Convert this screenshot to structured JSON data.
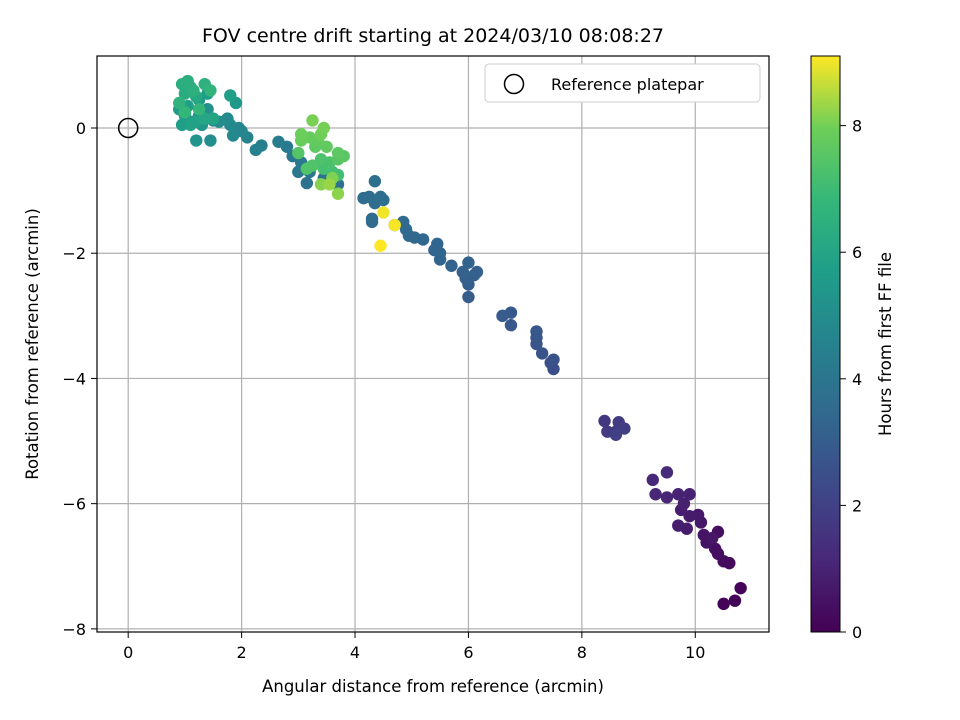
{
  "chart_data": {
    "type": "scatter",
    "title": "FOV centre drift starting at 2024/03/10 08:08:27",
    "xlabel": "Angular distance from reference (arcmin)",
    "ylabel": "Rotation from reference (arcmin)",
    "xlim": [
      -0.55,
      11.3
    ],
    "ylim": [
      -8.05,
      1.15
    ],
    "xticks": [
      0,
      2,
      4,
      6,
      8,
      10
    ],
    "xtick_labels": [
      "0",
      "2",
      "4",
      "6",
      "8",
      "10"
    ],
    "yticks": [
      0,
      -2,
      -4,
      -6,
      -8
    ],
    "ytick_labels": [
      "0",
      "−2",
      "−4",
      "−6",
      "−8"
    ],
    "grid": true,
    "legend": {
      "placement": "upper-right",
      "entries": [
        "Reference platepar"
      ]
    },
    "reference_point": {
      "x": 0,
      "y": 0,
      "label": "Reference platepar"
    },
    "colorbar": {
      "label": "Hours from first FF file",
      "range": [
        0,
        9.1
      ],
      "ticks": [
        0,
        2,
        4,
        6,
        8
      ],
      "tick_labels": [
        "0",
        "2",
        "4",
        "6",
        "8"
      ],
      "colormap": "viridis"
    },
    "points": [
      {
        "x": 10.5,
        "y": -7.6,
        "c": 0.05
      },
      {
        "x": 10.7,
        "y": -7.55,
        "c": 0.1
      },
      {
        "x": 10.8,
        "y": -7.35,
        "c": 0.15
      },
      {
        "x": 10.6,
        "y": -6.95,
        "c": 0.25
      },
      {
        "x": 10.5,
        "y": -6.92,
        "c": 0.3
      },
      {
        "x": 10.4,
        "y": -6.8,
        "c": 0.35
      },
      {
        "x": 10.35,
        "y": -6.72,
        "c": 0.4
      },
      {
        "x": 10.4,
        "y": -6.45,
        "c": 0.45
      },
      {
        "x": 10.2,
        "y": -6.62,
        "c": 0.5
      },
      {
        "x": 10.15,
        "y": -6.5,
        "c": 0.55
      },
      {
        "x": 10.3,
        "y": -6.55,
        "c": 0.6
      },
      {
        "x": 10.1,
        "y": -6.3,
        "c": 0.65
      },
      {
        "x": 10.05,
        "y": -6.18,
        "c": 0.7
      },
      {
        "x": 9.9,
        "y": -6.2,
        "c": 0.75
      },
      {
        "x": 9.85,
        "y": -6.4,
        "c": 0.8
      },
      {
        "x": 9.7,
        "y": -6.35,
        "c": 0.82
      },
      {
        "x": 9.75,
        "y": -6.1,
        "c": 0.85
      },
      {
        "x": 9.8,
        "y": -6.0,
        "c": 0.9
      },
      {
        "x": 9.9,
        "y": -5.85,
        "c": 0.95
      },
      {
        "x": 9.7,
        "y": -5.85,
        "c": 1.0
      },
      {
        "x": 9.5,
        "y": -5.9,
        "c": 1.05
      },
      {
        "x": 9.3,
        "y": -5.85,
        "c": 1.1
      },
      {
        "x": 9.25,
        "y": -5.62,
        "c": 1.15
      },
      {
        "x": 9.5,
        "y": -5.5,
        "c": 1.2
      },
      {
        "x": 8.4,
        "y": -4.68,
        "c": 1.7
      },
      {
        "x": 8.45,
        "y": -4.85,
        "c": 1.75
      },
      {
        "x": 8.6,
        "y": -4.85,
        "c": 1.8
      },
      {
        "x": 8.65,
        "y": -4.7,
        "c": 1.85
      },
      {
        "x": 8.75,
        "y": -4.8,
        "c": 1.9
      },
      {
        "x": 8.6,
        "y": -4.9,
        "c": 1.95
      },
      {
        "x": 7.5,
        "y": -3.85,
        "c": 2.5
      },
      {
        "x": 7.45,
        "y": -3.75,
        "c": 2.55
      },
      {
        "x": 7.5,
        "y": -3.7,
        "c": 2.6
      },
      {
        "x": 7.3,
        "y": -3.6,
        "c": 2.65
      },
      {
        "x": 7.2,
        "y": -3.45,
        "c": 2.7
      },
      {
        "x": 7.2,
        "y": -3.35,
        "c": 2.75
      },
      {
        "x": 7.2,
        "y": -3.25,
        "c": 2.8
      },
      {
        "x": 6.75,
        "y": -3.15,
        "c": 2.85
      },
      {
        "x": 6.75,
        "y": -2.95,
        "c": 2.9
      },
      {
        "x": 6.6,
        "y": -3.0,
        "c": 2.95
      },
      {
        "x": 6.0,
        "y": -2.7,
        "c": 3.0
      },
      {
        "x": 6.0,
        "y": -2.5,
        "c": 3.05
      },
      {
        "x": 5.95,
        "y": -2.4,
        "c": 3.1
      },
      {
        "x": 6.1,
        "y": -2.35,
        "c": 3.12
      },
      {
        "x": 6.15,
        "y": -2.3,
        "c": 3.15
      },
      {
        "x": 5.9,
        "y": -2.3,
        "c": 3.18
      },
      {
        "x": 6.0,
        "y": -2.15,
        "c": 3.2
      },
      {
        "x": 5.7,
        "y": -2.2,
        "c": 3.25
      },
      {
        "x": 5.5,
        "y": -2.1,
        "c": 3.3
      },
      {
        "x": 5.5,
        "y": -2.0,
        "c": 3.32
      },
      {
        "x": 5.4,
        "y": -1.95,
        "c": 3.35
      },
      {
        "x": 5.45,
        "y": -1.85,
        "c": 3.38
      },
      {
        "x": 5.2,
        "y": -1.78,
        "c": 3.4
      },
      {
        "x": 5.05,
        "y": -1.75,
        "c": 3.42
      },
      {
        "x": 4.95,
        "y": -1.72,
        "c": 3.45
      },
      {
        "x": 4.9,
        "y": -1.62,
        "c": 3.48
      },
      {
        "x": 4.85,
        "y": -1.5,
        "c": 3.5
      },
      {
        "x": 4.7,
        "y": -1.55,
        "c": 3.52
      },
      {
        "x": 4.3,
        "y": -1.45,
        "c": 3.55
      },
      {
        "x": 4.3,
        "y": -1.5,
        "c": 3.58
      },
      {
        "x": 4.35,
        "y": -1.2,
        "c": 3.6
      },
      {
        "x": 4.15,
        "y": -1.12,
        "c": 3.62
      },
      {
        "x": 4.25,
        "y": -1.1,
        "c": 3.65
      },
      {
        "x": 4.45,
        "y": -1.1,
        "c": 3.68
      },
      {
        "x": 4.5,
        "y": -1.15,
        "c": 3.7
      },
      {
        "x": 4.35,
        "y": -0.85,
        "c": 3.72
      },
      {
        "x": 3.7,
        "y": -0.9,
        "c": 3.8
      },
      {
        "x": 3.6,
        "y": -0.85,
        "c": 3.85
      },
      {
        "x": 3.45,
        "y": -0.8,
        "c": 3.9
      },
      {
        "x": 3.15,
        "y": -0.88,
        "c": 3.95
      },
      {
        "x": 3.2,
        "y": -0.7,
        "c": 4.0
      },
      {
        "x": 3.0,
        "y": -0.7,
        "c": 4.05
      },
      {
        "x": 2.9,
        "y": -0.45,
        "c": 4.1
      },
      {
        "x": 3.05,
        "y": -0.55,
        "c": 4.15
      },
      {
        "x": 2.8,
        "y": -0.3,
        "c": 4.2
      },
      {
        "x": 2.65,
        "y": -0.22,
        "c": 4.3
      },
      {
        "x": 2.35,
        "y": -0.28,
        "c": 4.4
      },
      {
        "x": 2.25,
        "y": -0.35,
        "c": 4.5
      },
      {
        "x": 2.1,
        "y": -0.15,
        "c": 4.6
      },
      {
        "x": 2.0,
        "y": -0.05,
        "c": 4.7
      },
      {
        "x": 1.95,
        "y": 0.0,
        "c": 4.75
      },
      {
        "x": 1.85,
        "y": -0.12,
        "c": 4.8
      },
      {
        "x": 1.8,
        "y": 0.05,
        "c": 4.85
      },
      {
        "x": 1.75,
        "y": 0.15,
        "c": 4.9
      },
      {
        "x": 1.6,
        "y": 0.1,
        "c": 4.95
      },
      {
        "x": 1.5,
        "y": 0.12,
        "c": 5.0
      },
      {
        "x": 1.45,
        "y": -0.2,
        "c": 5.05
      },
      {
        "x": 1.4,
        "y": 0.3,
        "c": 5.1
      },
      {
        "x": 1.35,
        "y": 0.25,
        "c": 5.15
      },
      {
        "x": 1.25,
        "y": 0.2,
        "c": 5.2
      },
      {
        "x": 1.2,
        "y": -0.2,
        "c": 5.3
      },
      {
        "x": 1.3,
        "y": 0.05,
        "c": 5.35
      },
      {
        "x": 1.15,
        "y": 0.1,
        "c": 5.4
      },
      {
        "x": 1.9,
        "y": 0.4,
        "c": 5.45
      },
      {
        "x": 1.0,
        "y": 0.2,
        "c": 5.5
      },
      {
        "x": 0.9,
        "y": 0.3,
        "c": 5.55
      },
      {
        "x": 1.25,
        "y": 0.45,
        "c": 5.6
      },
      {
        "x": 1.4,
        "y": 0.55,
        "c": 5.65
      },
      {
        "x": 0.95,
        "y": 0.05,
        "c": 5.7
      },
      {
        "x": 1.8,
        "y": 0.52,
        "c": 5.75
      },
      {
        "x": 1.05,
        "y": 0.35,
        "c": 5.8
      },
      {
        "x": 1.2,
        "y": 0.1,
        "c": 5.85
      },
      {
        "x": 1.1,
        "y": 0.05,
        "c": 5.9
      },
      {
        "x": 1.5,
        "y": 0.15,
        "c": 5.95
      },
      {
        "x": 1.35,
        "y": 0.15,
        "c": 6.05
      },
      {
        "x": 1.2,
        "y": 0.5,
        "c": 6.15
      },
      {
        "x": 1.1,
        "y": 0.65,
        "c": 6.25
      },
      {
        "x": 1.0,
        "y": 0.55,
        "c": 6.3
      },
      {
        "x": 0.95,
        "y": 0.7,
        "c": 6.35
      },
      {
        "x": 1.05,
        "y": 0.75,
        "c": 6.4
      },
      {
        "x": 1.15,
        "y": 0.6,
        "c": 6.45
      },
      {
        "x": 1.35,
        "y": 0.7,
        "c": 6.5
      },
      {
        "x": 0.9,
        "y": 0.4,
        "c": 6.6
      },
      {
        "x": 1.45,
        "y": 0.6,
        "c": 6.7
      },
      {
        "x": 1.25,
        "y": 0.3,
        "c": 6.75
      },
      {
        "x": 1.0,
        "y": 0.25,
        "c": 6.8
      },
      {
        "x": 3.7,
        "y": -0.75,
        "c": 7.1
      },
      {
        "x": 3.6,
        "y": -0.7,
        "c": 7.15
      },
      {
        "x": 3.45,
        "y": -0.65,
        "c": 7.2
      },
      {
        "x": 3.55,
        "y": -0.55,
        "c": 7.25
      },
      {
        "x": 3.4,
        "y": -0.5,
        "c": 7.3
      },
      {
        "x": 3.25,
        "y": -0.6,
        "c": 7.35
      },
      {
        "x": 3.15,
        "y": -0.65,
        "c": 7.4
      },
      {
        "x": 3.0,
        "y": -0.4,
        "c": 7.45
      },
      {
        "x": 3.7,
        "y": -0.5,
        "c": 7.5
      },
      {
        "x": 3.8,
        "y": -0.45,
        "c": 7.55
      },
      {
        "x": 3.7,
        "y": -0.4,
        "c": 7.6
      },
      {
        "x": 3.3,
        "y": -0.3,
        "c": 7.65
      },
      {
        "x": 3.5,
        "y": -0.3,
        "c": 7.7
      },
      {
        "x": 3.35,
        "y": -0.2,
        "c": 7.75
      },
      {
        "x": 3.2,
        "y": -0.15,
        "c": 7.8
      },
      {
        "x": 3.05,
        "y": -0.2,
        "c": 7.85
      },
      {
        "x": 3.05,
        "y": -0.1,
        "c": 7.9
      },
      {
        "x": 3.4,
        "y": -0.1,
        "c": 7.95
      },
      {
        "x": 3.45,
        "y": 0.0,
        "c": 8.0
      },
      {
        "x": 3.25,
        "y": 0.12,
        "c": 8.05
      },
      {
        "x": 3.6,
        "y": -0.8,
        "c": 8.1
      },
      {
        "x": 3.4,
        "y": -0.9,
        "c": 8.15
      },
      {
        "x": 3.7,
        "y": -1.05,
        "c": 8.2
      },
      {
        "x": 3.55,
        "y": -0.9,
        "c": 8.3
      },
      {
        "x": 4.5,
        "y": -1.35,
        "c": 9.0
      },
      {
        "x": 4.7,
        "y": -1.55,
        "c": 9.05
      },
      {
        "x": 4.45,
        "y": -1.88,
        "c": 9.1
      }
    ]
  }
}
